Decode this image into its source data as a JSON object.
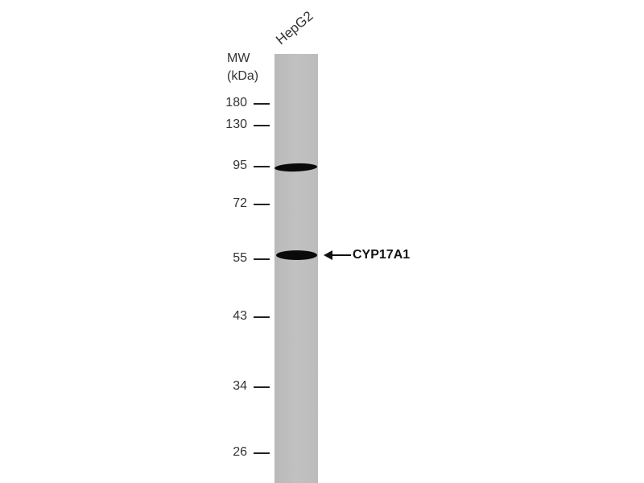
{
  "lane_label": "HepG2",
  "mw_label": {
    "line1": "MW",
    "line2": "(kDa)"
  },
  "markers": [
    "180",
    "130",
    "95",
    "72",
    "55",
    "43",
    "34",
    "26"
  ],
  "bands_kda": [
    "95",
    "55"
  ],
  "target": {
    "label": "CYP17A1",
    "icon": "left-arrow-icon"
  },
  "colors": {
    "lane": "#bdbdbd",
    "band": "#0a0a0a",
    "background": "#ffffff"
  }
}
